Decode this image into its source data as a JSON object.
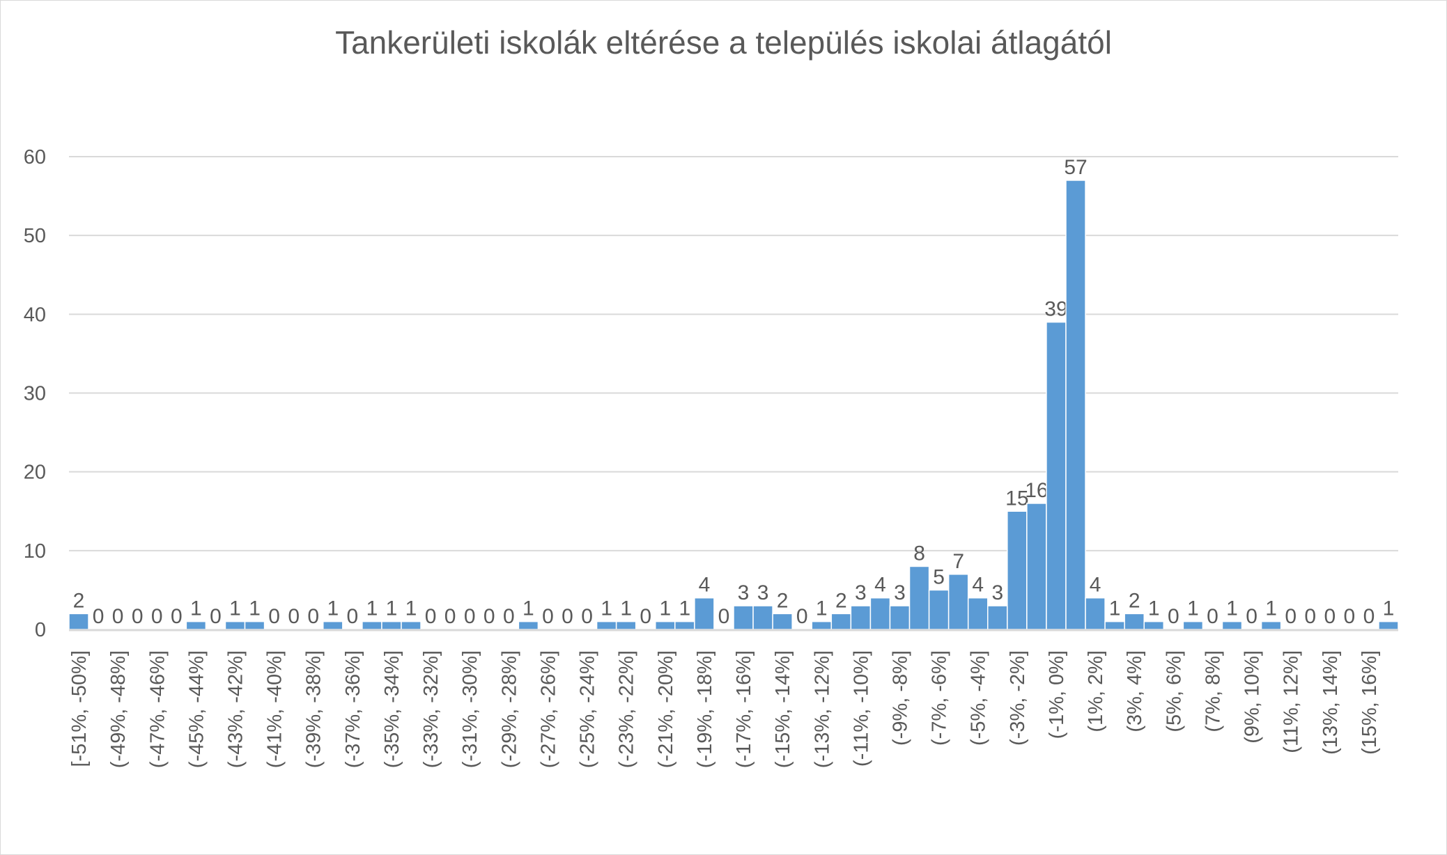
{
  "chart_data": {
    "type": "bar",
    "title": "Tankerületi iskolák eltérése a település iskolai átlagától",
    "xlabel": "",
    "ylabel": "",
    "ylim": [
      0,
      60
    ],
    "yticks": [
      0,
      10,
      20,
      30,
      40,
      50,
      60
    ],
    "grid": true,
    "legend": "none",
    "bar_color": "#5B9BD5",
    "values": [
      2,
      0,
      0,
      0,
      0,
      0,
      1,
      0,
      1,
      1,
      0,
      0,
      0,
      1,
      0,
      1,
      1,
      1,
      0,
      0,
      0,
      0,
      0,
      1,
      0,
      0,
      0,
      1,
      1,
      0,
      1,
      1,
      4,
      0,
      3,
      3,
      2,
      0,
      1,
      2,
      3,
      4,
      3,
      8,
      5,
      7,
      4,
      3,
      15,
      16,
      39,
      57,
      4,
      1,
      2,
      1,
      0,
      1,
      0,
      1,
      0,
      1,
      0,
      0,
      0,
      0,
      0,
      1
    ],
    "tick_label_every": 2,
    "tick_labels": [
      "[-51%, -50%]",
      "(-49%, -48%]",
      "(-47%, -46%]",
      "(-45%, -44%]",
      "(-43%, -42%]",
      "(-41%, -40%]",
      "(-39%, -38%]",
      "(-37%, -36%]",
      "(-35%, -34%]",
      "(-33%, -32%]",
      "(-31%, -30%]",
      "(-29%, -28%]",
      "(-27%, -26%]",
      "(-25%, -24%]",
      "(-23%, -22%]",
      "(-21%, -20%]",
      "(-19%, -18%]",
      "(-17%, -16%]",
      "(-15%, -14%]",
      "(-13%, -12%]",
      "(-11%, -10%]",
      "(-9%, -8%]",
      "(-7%, -6%]",
      "(-5%, -4%]",
      "(-3%, -2%]",
      "(-1%, 0%]",
      "(1%, 2%]",
      "(3%, 4%]",
      "(5%, 6%]",
      "(7%, 8%]",
      "(9%, 10%]",
      "(11%, 12%]",
      "(13%, 14%]",
      "(15%, 16%]"
    ]
  }
}
